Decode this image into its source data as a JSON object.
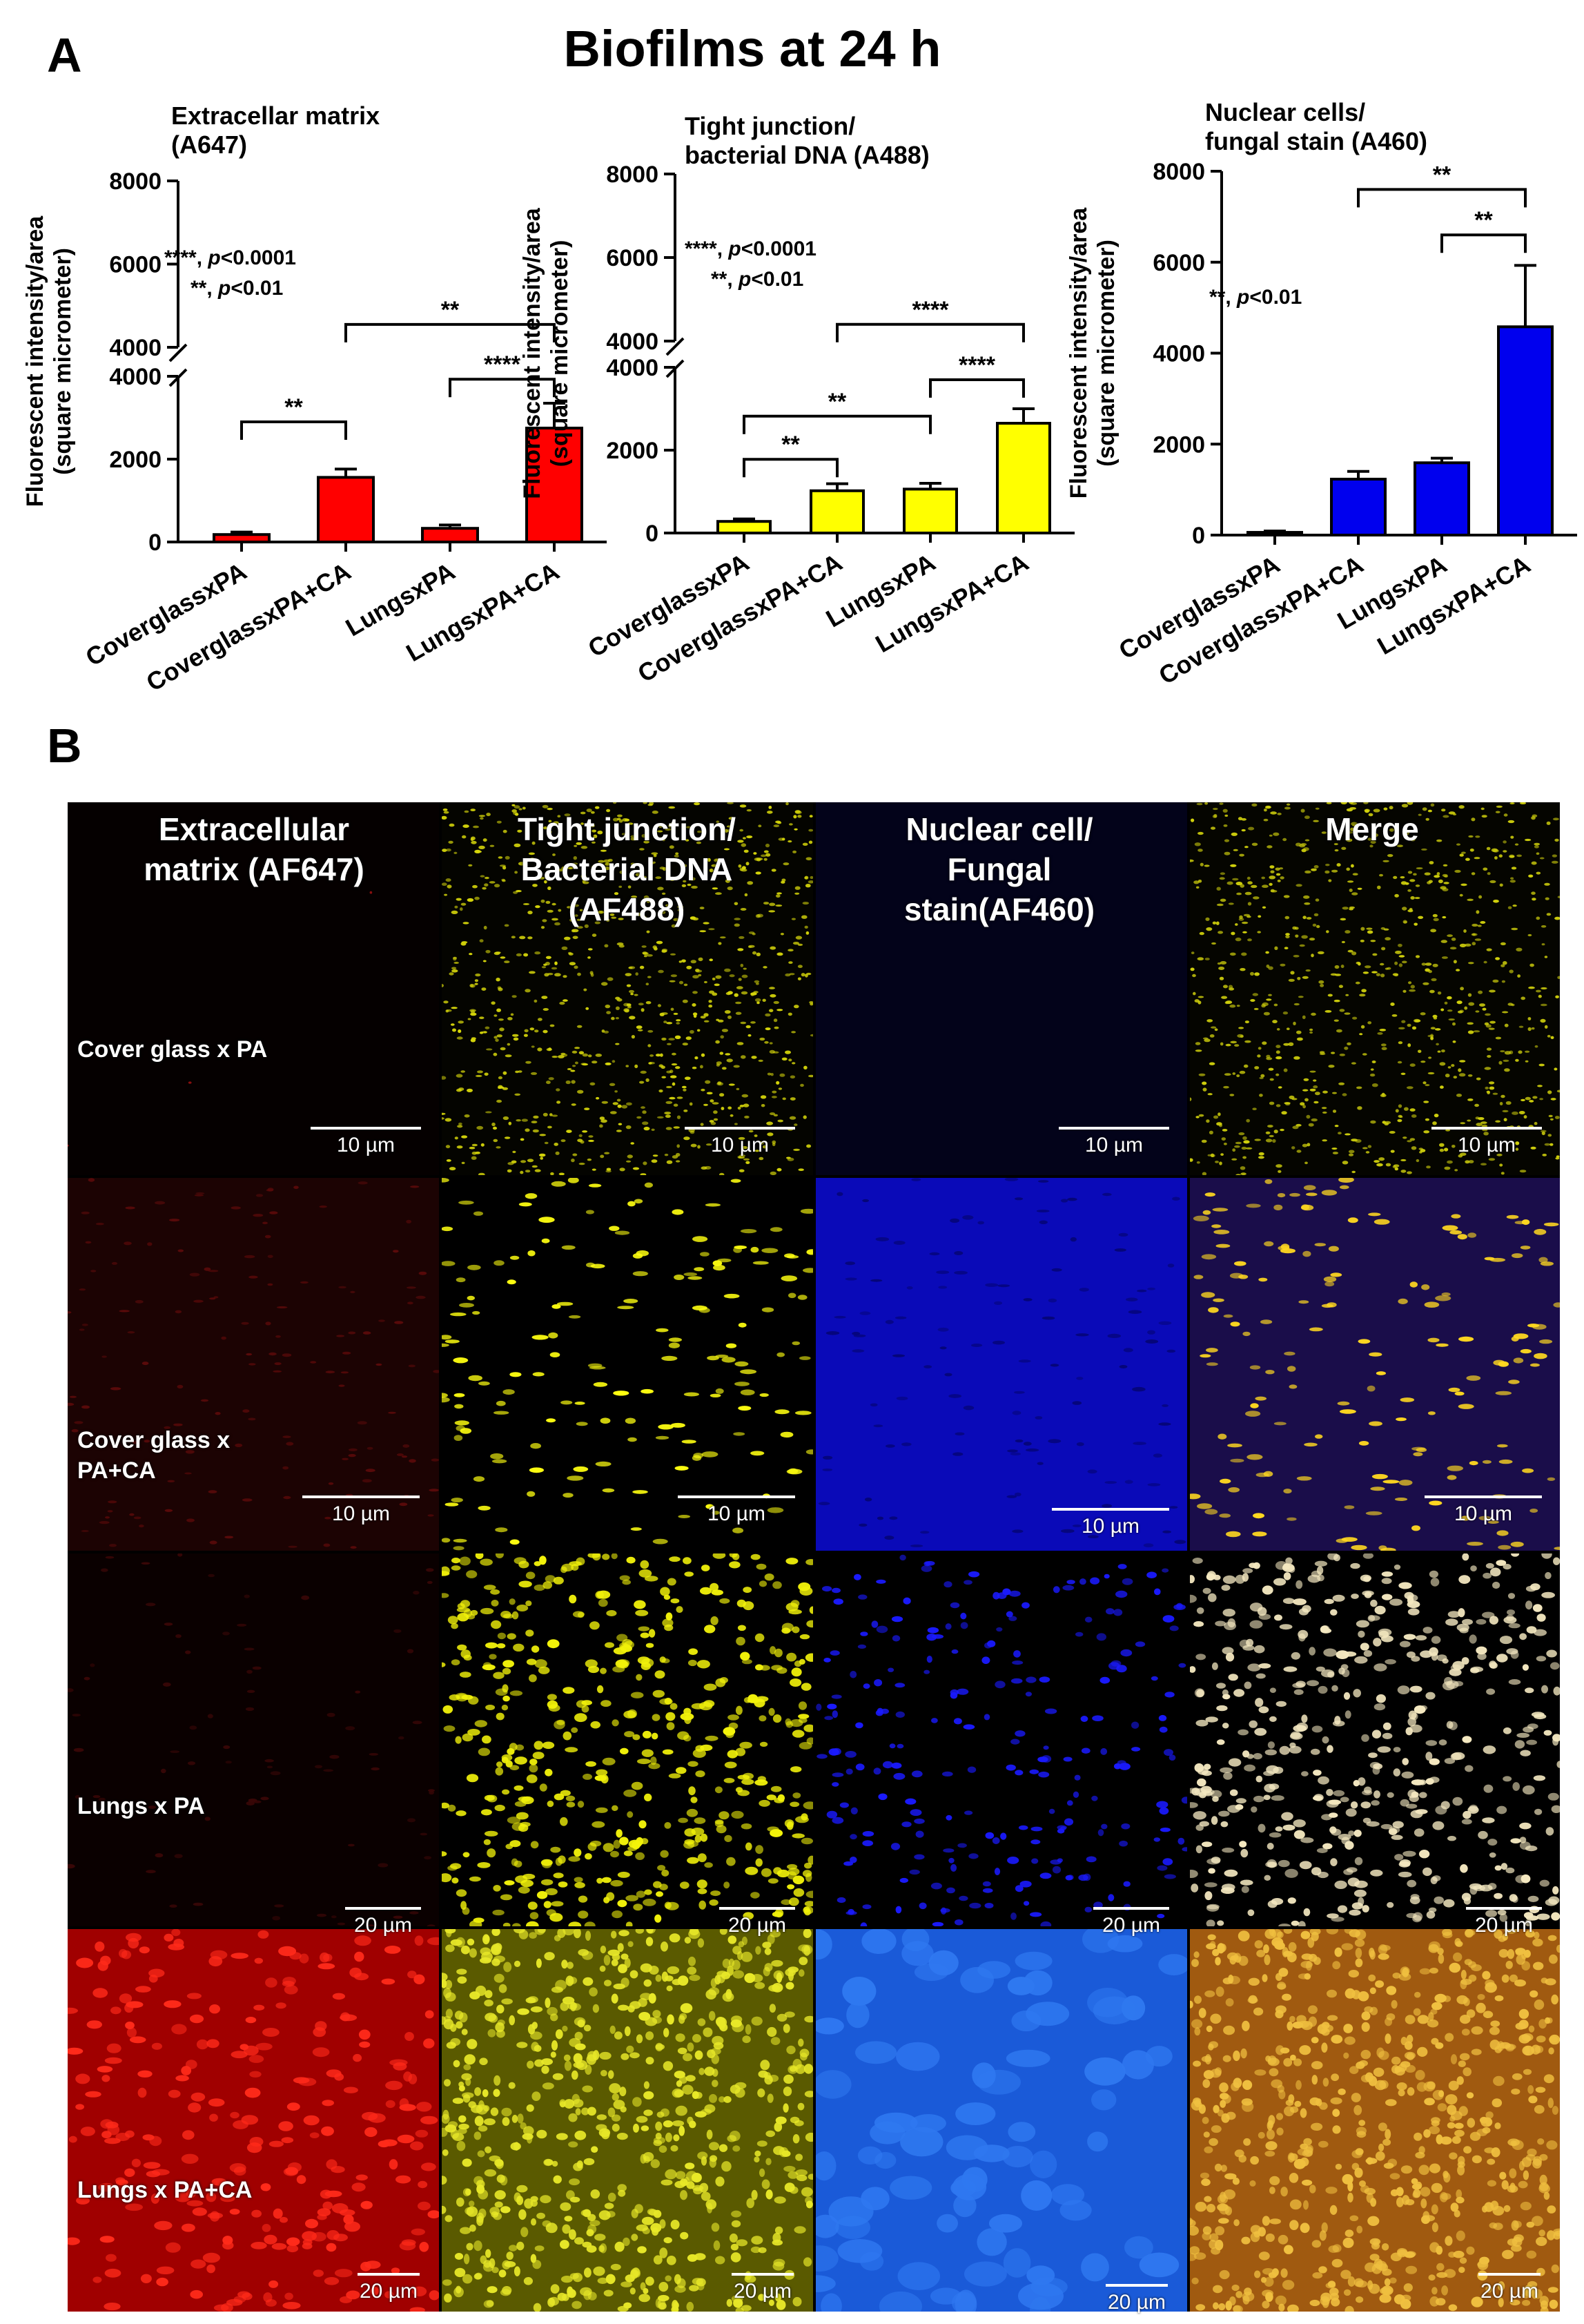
{
  "panel_a_letter": "A",
  "panel_b_letter": "B",
  "figure_title": "Biofilms at 24 h",
  "colors": {
    "red": "#ff0000",
    "yellow": "#ffff00",
    "blue": "#0000ee"
  },
  "chart_data": [
    {
      "type": "bar",
      "title_lines": [
        "Extracellar matrix",
        "(A647)"
      ],
      "ylabel_lines": [
        "Fluorescent intensity/area",
        "(square micrometer)"
      ],
      "categories": [
        "CoverglassxPA",
        "CoverglassxPA+CA",
        "LungsxPA",
        "LungsxPA+CA"
      ],
      "values": [
        180,
        1560,
        330,
        2750
      ],
      "errors": [
        60,
        200,
        80,
        600
      ],
      "bar_color": "#ff0000",
      "y_axis_broken": true,
      "lower_range": [
        0,
        4000
      ],
      "lower_ticks": [
        0,
        2000,
        4000
      ],
      "upper_range": [
        4000,
        8000
      ],
      "upper_ticks": [
        4000,
        6000,
        8000
      ],
      "significance_legend": [
        {
          "stars": "****",
          "pval": "p<0.0001"
        },
        {
          "stars": "**",
          "pval": "p<0.01"
        }
      ],
      "comparisons": [
        {
          "from": 0,
          "to": 1,
          "label": "**",
          "level": 2900
        },
        {
          "from": 2,
          "to": 3,
          "label": "****",
          "level": 3930
        },
        {
          "from": 1,
          "to": 3,
          "label": "**",
          "level": 4550
        }
      ]
    },
    {
      "type": "bar",
      "title_lines": [
        "Tight junction/",
        "bacterial DNA (A488)"
      ],
      "ylabel_lines": [
        "Fluorescent intensity/area",
        "(square micrometer)"
      ],
      "categories": [
        "CoverglassxPA",
        "CoverglassxPA+CA",
        "LungsxPA",
        "LungsxPA+CA"
      ],
      "values": [
        280,
        1020,
        1060,
        2650
      ],
      "errors": [
        60,
        170,
        140,
        350
      ],
      "bar_color": "#ffff00",
      "y_axis_broken": true,
      "lower_range": [
        0,
        4000
      ],
      "lower_ticks": [
        0,
        2000,
        4000
      ],
      "upper_range": [
        4000,
        8000
      ],
      "upper_ticks": [
        4000,
        6000,
        8000
      ],
      "significance_legend": [
        {
          "stars": "****",
          "pval": "p<0.0001"
        },
        {
          "stars": "**",
          "pval": "p<0.01"
        }
      ],
      "comparisons": [
        {
          "from": 0,
          "to": 1,
          "label": "**",
          "level": 1780
        },
        {
          "from": 0,
          "to": 2,
          "label": "**",
          "level": 2820
        },
        {
          "from": 2,
          "to": 3,
          "label": "****",
          "level": 3700
        },
        {
          "from": 1,
          "to": 3,
          "label": "****",
          "level": 4400
        }
      ]
    },
    {
      "type": "bar",
      "title_lines": [
        "Nuclear cells/",
        "fungal stain  (A460)"
      ],
      "ylabel_lines": [
        "Fluorescent intensity/area",
        "(square micrometer)"
      ],
      "categories": [
        "CoverglassxPA",
        "CoverglassxPA+CA",
        "LungsxPA",
        "LungsxPA+CA"
      ],
      "values": [
        60,
        1230,
        1590,
        4580
      ],
      "errors": [
        30,
        170,
        100,
        1350
      ],
      "bar_color": "#0000ee",
      "y_axis_broken": false,
      "ylim": [
        0,
        8000
      ],
      "yticks": [
        0,
        2000,
        4000,
        6000,
        8000
      ],
      "significance_legend": [
        {
          "stars": "**",
          "pval": "p<0.01"
        }
      ],
      "comparisons": [
        {
          "from": 2,
          "to": 3,
          "label": "**",
          "level": 6600
        },
        {
          "from": 1,
          "to": 3,
          "label": "**",
          "level": 7600
        }
      ]
    }
  ],
  "micrographs": {
    "column_headers": [
      "Extracellular matrix (AF647)",
      "Tight junction/ Bacterial DNA (AF488)",
      "Nuclear cell/ Fungal stain(AF460)",
      "Merge"
    ],
    "row_labels": [
      "Cover glass x PA",
      "Cover glass x PA+CA",
      "Lungs x PA",
      "Lungs x PA+CA"
    ],
    "scale_bars": [
      [
        "10 µm",
        "10 µm",
        "10 µm",
        "10 µm"
      ],
      [
        "10 µm",
        "10 µm",
        "10 µm",
        "10 µm"
      ],
      [
        "20 µm",
        "20 µm",
        "20 µm",
        "20 µm"
      ],
      [
        "20 µm",
        "20 µm",
        "20 µm",
        "20 µm"
      ]
    ]
  }
}
